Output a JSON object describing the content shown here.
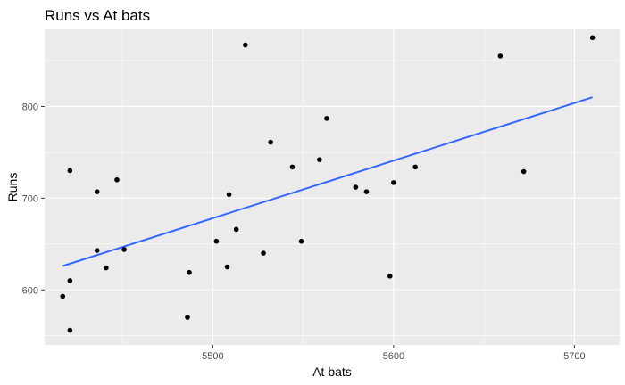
{
  "chart_data": {
    "type": "scatter",
    "title": "Runs vs At bats",
    "xlabel": "At bats",
    "ylabel": "Runs",
    "xlim": [
      5407,
      5725
    ],
    "ylim": [
      540,
      885
    ],
    "xticks": [
      5500,
      5600,
      5700
    ],
    "yticks": [
      600,
      700,
      800
    ],
    "grid": true,
    "background": "#ebebeb",
    "point_color": "#000000",
    "trend_color": "#3366ff",
    "points": [
      {
        "x": 5417,
        "y": 593
      },
      {
        "x": 5421,
        "y": 730
      },
      {
        "x": 5421,
        "y": 610
      },
      {
        "x": 5421,
        "y": 556
      },
      {
        "x": 5436,
        "y": 707
      },
      {
        "x": 5436,
        "y": 643
      },
      {
        "x": 5441,
        "y": 624
      },
      {
        "x": 5447,
        "y": 720
      },
      {
        "x": 5451,
        "y": 644
      },
      {
        "x": 5486,
        "y": 570
      },
      {
        "x": 5487,
        "y": 619
      },
      {
        "x": 5502,
        "y": 653
      },
      {
        "x": 5508,
        "y": 625
      },
      {
        "x": 5509,
        "y": 704
      },
      {
        "x": 5513,
        "y": 666
      },
      {
        "x": 5518,
        "y": 867
      },
      {
        "x": 5528,
        "y": 640
      },
      {
        "x": 5532,
        "y": 761
      },
      {
        "x": 5544,
        "y": 734
      },
      {
        "x": 5549,
        "y": 653
      },
      {
        "x": 5559,
        "y": 742
      },
      {
        "x": 5563,
        "y": 787
      },
      {
        "x": 5579,
        "y": 712
      },
      {
        "x": 5585,
        "y": 707
      },
      {
        "x": 5598,
        "y": 615
      },
      {
        "x": 5600,
        "y": 717
      },
      {
        "x": 5612,
        "y": 734
      },
      {
        "x": 5659,
        "y": 855
      },
      {
        "x": 5672,
        "y": 729
      },
      {
        "x": 5710,
        "y": 875
      }
    ],
    "trend_line": {
      "x": [
        5417,
        5710
      ],
      "y": [
        626,
        810
      ]
    }
  }
}
